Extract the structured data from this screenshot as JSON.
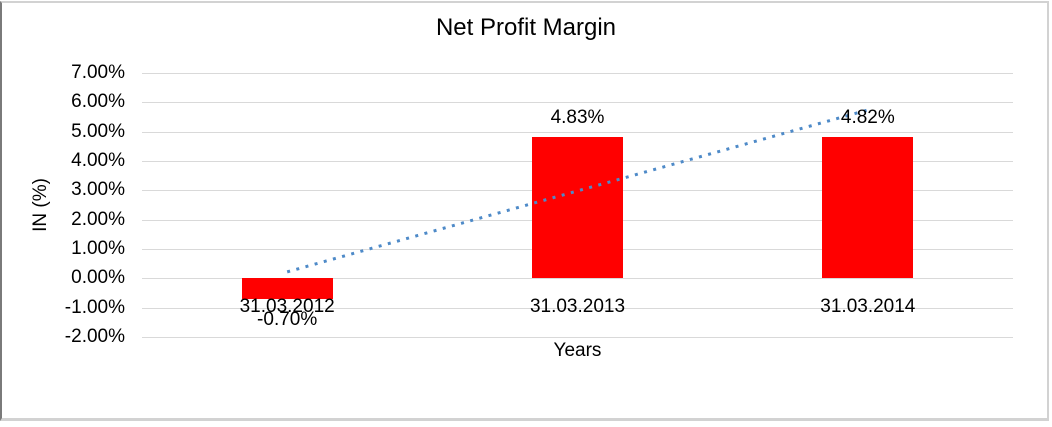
{
  "chart_data": {
    "type": "bar",
    "title": "Net Profit Margin",
    "xlabel": "Years",
    "ylabel": "IN (%)",
    "categories": [
      "31.03.2012",
      "31.03.2013",
      "31.03.2014"
    ],
    "values": [
      -0.7,
      4.83,
      4.82
    ],
    "data_labels": [
      "-0.70%",
      "4.83%",
      "4.82%"
    ],
    "ytick_labels": [
      "7.00%",
      "6.00%",
      "5.00%",
      "4.00%",
      "3.00%",
      "2.00%",
      "1.00%",
      "0.00%",
      "-1.00%",
      "-2.00%"
    ],
    "ylim": [
      -2,
      7
    ],
    "ytick_step": 1,
    "grid": true,
    "legend": "none",
    "bar_color": "#ff0000",
    "gridline_color": "#d9d9d9",
    "text_color": "#000000",
    "trendline": {
      "style": "dotted",
      "color": "#4e8ac8",
      "start_value": 0.22,
      "end_value": 5.74
    }
  }
}
